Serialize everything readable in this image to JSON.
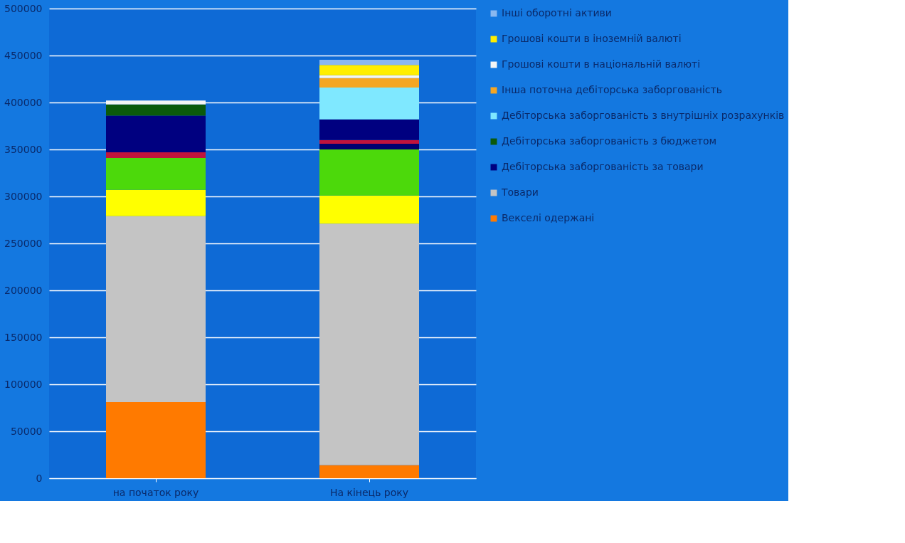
{
  "chart_data": {
    "type": "bar",
    "stacked": true,
    "categories": [
      "на початок року",
      "На кінець року"
    ],
    "ylim": [
      0,
      500000
    ],
    "yticks": [
      0,
      50000,
      100000,
      150000,
      200000,
      250000,
      300000,
      350000,
      400000,
      450000,
      500000
    ],
    "grid": "y",
    "legend": "right",
    "series": [
      {
        "name": "Векселі одержані",
        "color": "#ff7a00",
        "values": [
          81000,
          14000
        ]
      },
      {
        "name": "Товари",
        "color": "#c4c4c4",
        "values": [
          198000,
          257000
        ]
      },
      {
        "color": "#ffff00",
        "values": [
          28000,
          30000
        ]
      },
      {
        "color": "#4cd90b",
        "values": [
          34000,
          49000
        ]
      },
      {
        "color": "#000070",
        "values": [
          0,
          6000
        ]
      },
      {
        "color": "#c0143c",
        "values": [
          6000,
          4000
        ]
      },
      {
        "name": "Дебіторська заборгованість за товари",
        "color": "#000080",
        "values": [
          39000,
          22000
        ]
      },
      {
        "name": "Дебіторська заборгованість з бюджетом",
        "color": "#0b5a0b",
        "values": [
          12000,
          0
        ]
      },
      {
        "name": "Дебіторська заборгованість з внутрішніх розрахунків",
        "color": "#7fe8ff",
        "values": [
          0,
          34000
        ]
      },
      {
        "name": "Інша поточна дебіторська заборгованість",
        "color": "#f5a623",
        "values": [
          0,
          10000
        ]
      },
      {
        "name": "Грошові кошти в національній валюті",
        "color": "#f5f5f5",
        "values": [
          4000,
          3000
        ]
      },
      {
        "name": "Грошові кошти в іноземній валюті",
        "color": "#ffee00",
        "values": [
          0,
          11000
        ]
      },
      {
        "name": "Інші оборотні активи",
        "color": "#8ab8f0",
        "values": [
          0,
          5500
        ]
      }
    ]
  }
}
